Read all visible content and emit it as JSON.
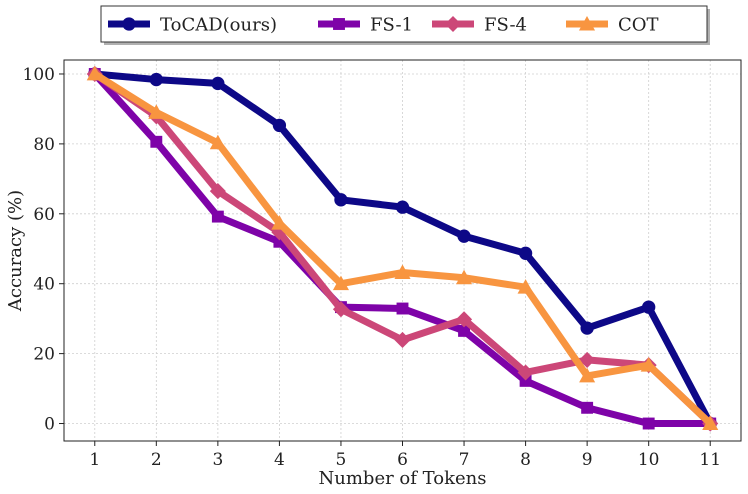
{
  "chart_data": {
    "type": "line",
    "title": "",
    "xlabel": "Number of Tokens",
    "ylabel": "Accuracy (%)",
    "x": [
      1,
      2,
      3,
      4,
      5,
      6,
      7,
      8,
      9,
      10,
      11
    ],
    "xlim": [
      0.5,
      11.5
    ],
    "ylim": [
      -5,
      104
    ],
    "yticks": [
      0,
      20,
      40,
      60,
      80,
      100
    ],
    "grid": true,
    "legend_position": "top-center",
    "series": [
      {
        "name": "ToCAD(ours)",
        "color": "#0d0887",
        "marker": "circle",
        "values": [
          100,
          98.4,
          97.3,
          85.3,
          64.0,
          61.9,
          53.6,
          48.7,
          27.3,
          33.3,
          0
        ]
      },
      {
        "name": "FS-1",
        "color": "#7e03a8",
        "marker": "square",
        "values": [
          100,
          80.6,
          59.2,
          52.0,
          33.3,
          32.9,
          26.5,
          12.2,
          4.5,
          0,
          0
        ]
      },
      {
        "name": "FS-4",
        "color": "#cc4778",
        "marker": "diamond",
        "values": [
          100,
          87.9,
          66.5,
          54.7,
          32.7,
          23.9,
          29.8,
          14.6,
          18.2,
          16.7,
          0
        ]
      },
      {
        "name": "COT",
        "color": "#f89540",
        "marker": "triangle",
        "values": [
          100,
          89.0,
          80.3,
          57.3,
          40.0,
          43.2,
          41.7,
          39.0,
          13.6,
          16.7,
          0
        ]
      }
    ]
  }
}
